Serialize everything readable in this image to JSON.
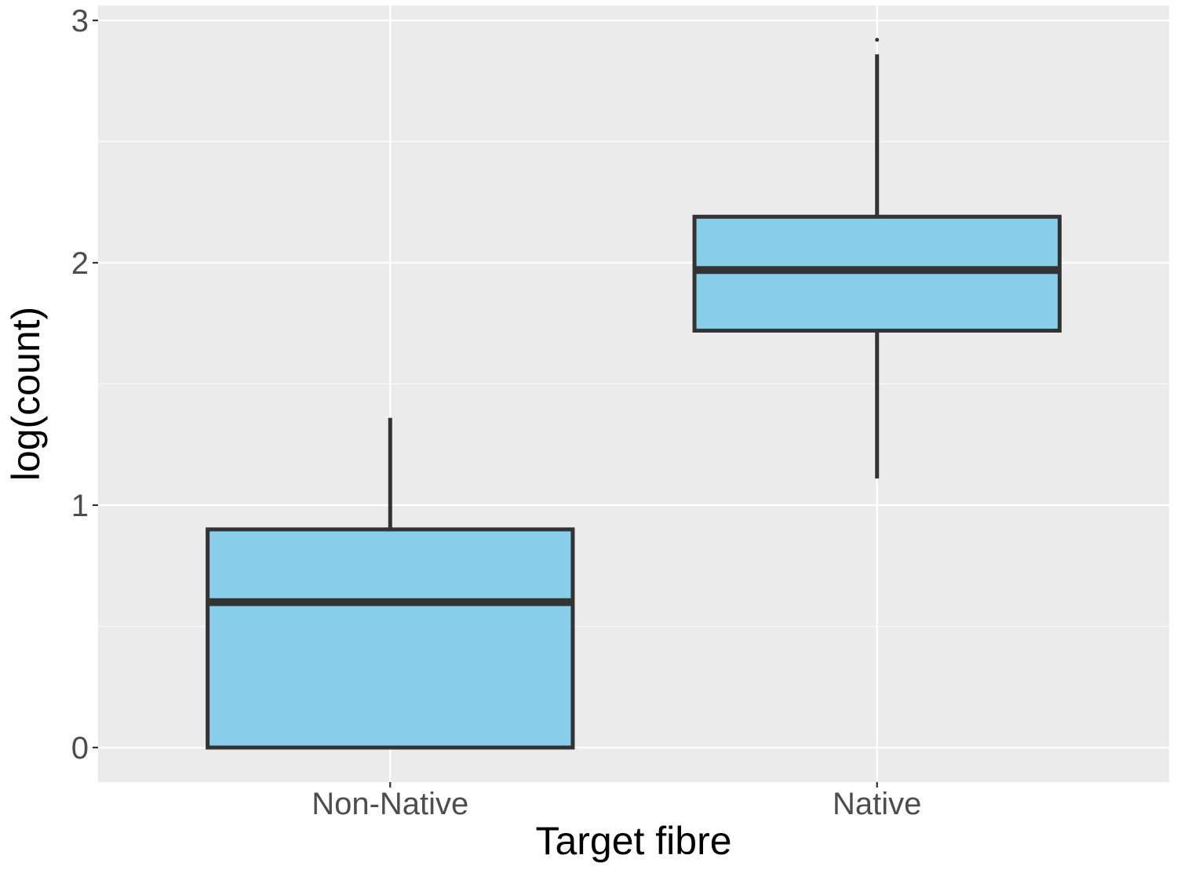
{
  "chart_data": {
    "type": "box",
    "xlabel": "Target fibre",
    "ylabel": "log(count)",
    "categories": [
      "Non-Native",
      "Native"
    ],
    "y_ticks": [
      0,
      1,
      2,
      3
    ],
    "y_tick_labels": [
      "0",
      "1",
      "2",
      "3"
    ],
    "ylim": [
      -0.14,
      3.07
    ],
    "grid": true,
    "legend": "none",
    "boxes": [
      {
        "category": "Non-Native",
        "whisker_low": 0.0,
        "q1": 0.0,
        "median": 0.6,
        "q3": 0.9,
        "whisker_high": 1.36,
        "outliers": []
      },
      {
        "category": "Native",
        "whisker_low": 1.11,
        "q1": 1.72,
        "median": 1.97,
        "q3": 2.19,
        "whisker_high": 2.86,
        "outliers": [
          2.92
        ]
      }
    ],
    "colors": {
      "box_fill": "#87ceeb",
      "box_stroke": "#333333",
      "panel_bg": "#ebebeb",
      "grid": "#ffffff"
    }
  }
}
